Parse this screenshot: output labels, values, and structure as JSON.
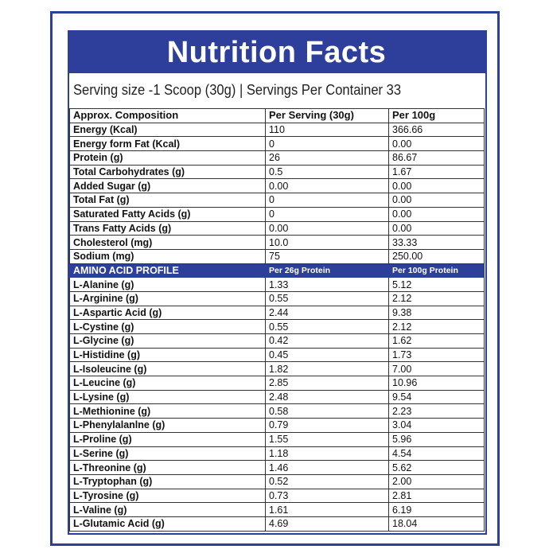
{
  "header": {
    "title": "Nutrition Facts",
    "serving": "Serving size -1 Scoop (30g)  |  Servings Per Container 33"
  },
  "table": {
    "header": [
      "Approx. Composition",
      "Per Serving  (30g)",
      "Per 100g"
    ],
    "rows": [
      [
        "Energy (Kcal)",
        "110",
        "366.66"
      ],
      [
        "Energy form Fat (Kcal)",
        "0",
        "0.00"
      ],
      [
        "Protein (g)",
        "26",
        "86.67"
      ],
      [
        "Total Carbohydrates (g)",
        "0.5",
        "1.67"
      ],
      [
        "Added Sugar (g)",
        "0.00",
        "0.00"
      ],
      [
        "Total Fat (g)",
        "0",
        "0.00"
      ],
      [
        "Saturated Fatty Acids (g)",
        "0",
        "0.00"
      ],
      [
        "Trans Fatty Acids (g)",
        "0.00",
        "0.00"
      ],
      [
        "Cholesterol (mg)",
        "10.0",
        "33.33"
      ],
      [
        "Sodium (mg)",
        "75",
        "250.00"
      ]
    ]
  },
  "amino": {
    "header": [
      "AMINO ACID PROFILE",
      "Per 26g Protein",
      "Per 100g Protein"
    ],
    "rows": [
      [
        "L-Alanine (g)",
        "1.33",
        "5.12"
      ],
      [
        "L-Arginine (g)",
        "0.55",
        "2.12"
      ],
      [
        "L-Aspartic Acid (g)",
        "2.44",
        "9.38"
      ],
      [
        "L-Cystine (g)",
        "0.55",
        "2.12"
      ],
      [
        "L-Glycine (g)",
        "0.42",
        "1.62"
      ],
      [
        "L-Histidine (g)",
        "0.45",
        "1.73"
      ],
      [
        "L-Isoleucine (g)",
        "1.82",
        "7.00"
      ],
      [
        "L-Leucine (g)",
        "2.85",
        "10.96"
      ],
      [
        "L-Lysine (g)",
        "2.48",
        "9.54"
      ],
      [
        "L-Methionine (g)",
        "0.58",
        "2.23"
      ],
      [
        "L-Phenylalanlne (g)",
        "0.79",
        "3.04"
      ],
      [
        "L-Proline (g)",
        "1.55",
        "5.96"
      ],
      [
        "L-Serine (g)",
        "1.18",
        "4.54"
      ],
      [
        "L-Threonine (g)",
        "1.46",
        "5.62"
      ],
      [
        "L-Tryptophan (g)",
        "0.52",
        "2.00"
      ],
      [
        "L-Tyrosine (g)",
        "0.73",
        "2.81"
      ],
      [
        "L-Valine (g)",
        "1.61",
        "6.19"
      ],
      [
        "L-Glutamic Acid (g)",
        "4.69",
        "18.04"
      ]
    ]
  }
}
